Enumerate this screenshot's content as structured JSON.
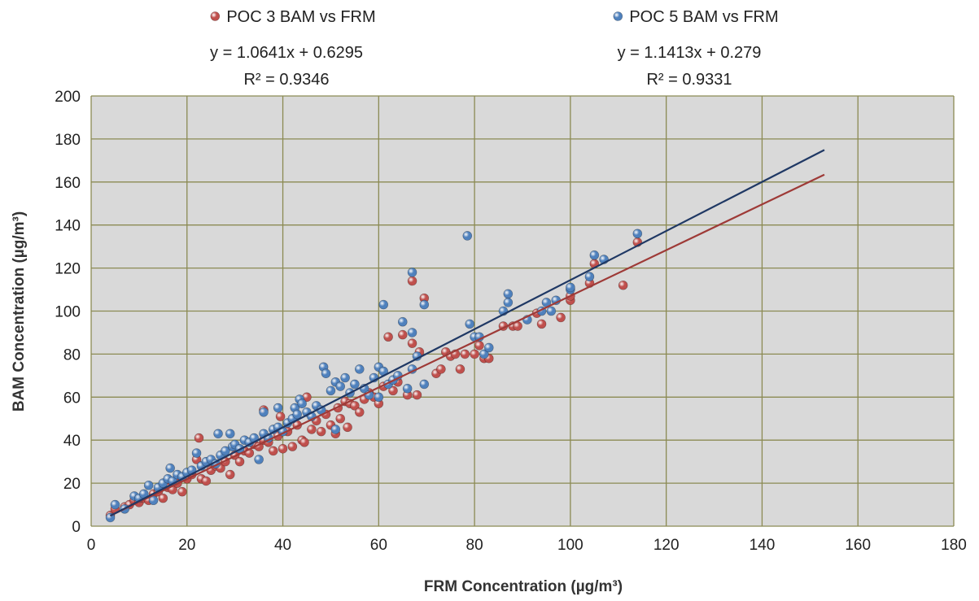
{
  "chart_data": {
    "type": "scatter",
    "xlabel": "FRM Concentration (µg/m³)",
    "ylabel": "BAM Concentration (µg/m³)",
    "xlim": [
      0,
      180
    ],
    "ylim": [
      0,
      200
    ],
    "x_ticks": [
      0,
      20,
      40,
      60,
      80,
      100,
      120,
      140,
      160,
      180
    ],
    "y_ticks": [
      0,
      20,
      40,
      60,
      80,
      100,
      120,
      140,
      160,
      180,
      200
    ],
    "grid": true,
    "legend_position": "top",
    "plot_background": "#d9d9d9",
    "grid_color": "#8b8a53",
    "series": [
      {
        "name": "POC 3 BAM vs FRM",
        "color": "#c0504d",
        "marker": "circle",
        "equation": "y = 1.0641x + 0.6295",
        "r_squared": "R² = 0.9346",
        "trendline": {
          "slope": 1.0641,
          "intercept": 0.6295,
          "x_range": [
            4,
            153
          ],
          "color": "#9e3a37"
        },
        "points": [
          [
            4,
            5
          ],
          [
            5,
            8
          ],
          [
            7,
            9
          ],
          [
            8,
            10
          ],
          [
            9,
            12
          ],
          [
            10,
            11
          ],
          [
            11,
            13
          ],
          [
            12,
            12
          ],
          [
            13,
            15
          ],
          [
            14,
            16
          ],
          [
            15,
            13
          ],
          [
            16,
            18
          ],
          [
            17,
            17
          ],
          [
            18,
            20
          ],
          [
            19,
            16
          ],
          [
            20,
            22
          ],
          [
            21,
            24
          ],
          [
            22,
            31
          ],
          [
            22.5,
            41
          ],
          [
            23,
            22
          ],
          [
            24,
            21
          ],
          [
            25,
            26
          ],
          [
            26,
            28
          ],
          [
            27,
            27
          ],
          [
            28,
            30
          ],
          [
            29,
            24
          ],
          [
            30,
            33
          ],
          [
            31,
            30
          ],
          [
            32,
            35
          ],
          [
            33,
            34
          ],
          [
            34,
            38
          ],
          [
            35,
            37
          ],
          [
            36,
            54
          ],
          [
            36,
            40
          ],
          [
            37,
            39
          ],
          [
            38,
            35
          ],
          [
            39,
            42
          ],
          [
            39.5,
            51
          ],
          [
            40,
            36
          ],
          [
            41,
            44
          ],
          [
            42,
            37
          ],
          [
            43,
            47
          ],
          [
            44,
            40
          ],
          [
            44.5,
            39
          ],
          [
            45,
            60
          ],
          [
            46,
            45
          ],
          [
            47,
            49
          ],
          [
            48,
            44
          ],
          [
            49,
            52
          ],
          [
            50,
            47
          ],
          [
            51,
            43
          ],
          [
            51.5,
            55
          ],
          [
            52,
            50
          ],
          [
            53,
            58
          ],
          [
            53.5,
            46
          ],
          [
            54,
            57
          ],
          [
            55,
            56
          ],
          [
            56,
            53
          ],
          [
            57,
            59
          ],
          [
            58,
            62
          ],
          [
            59,
            60
          ],
          [
            60,
            57
          ],
          [
            61,
            65
          ],
          [
            62,
            88
          ],
          [
            63,
            63
          ],
          [
            64,
            67
          ],
          [
            65,
            89
          ],
          [
            66,
            61
          ],
          [
            67,
            114
          ],
          [
            67,
            85
          ],
          [
            68,
            61
          ],
          [
            68.5,
            81
          ],
          [
            69.5,
            106
          ],
          [
            72,
            71
          ],
          [
            73,
            73
          ],
          [
            74,
            81
          ],
          [
            75,
            79
          ],
          [
            76,
            80
          ],
          [
            77,
            73
          ],
          [
            78,
            80
          ],
          [
            80,
            80
          ],
          [
            81,
            84
          ],
          [
            82,
            78
          ],
          [
            83,
            78
          ],
          [
            86,
            93
          ],
          [
            88,
            93
          ],
          [
            89,
            93
          ],
          [
            93,
            99
          ],
          [
            94,
            94
          ],
          [
            98,
            97
          ],
          [
            100,
            105
          ],
          [
            100,
            107
          ],
          [
            104,
            113
          ],
          [
            105,
            122
          ],
          [
            111,
            112
          ],
          [
            114,
            132
          ]
        ]
      },
      {
        "name": "POC 5 BAM vs FRM",
        "color": "#4f81bd",
        "marker": "circle",
        "equation": "y = 1.1413x + 0.279",
        "r_squared": "R² = 0.9331",
        "trendline": {
          "slope": 1.1413,
          "intercept": 0.279,
          "x_range": [
            4,
            153
          ],
          "color": "#1f3864"
        },
        "points": [
          [
            4,
            4
          ],
          [
            5,
            10
          ],
          [
            7,
            8
          ],
          [
            9,
            14
          ],
          [
            10,
            13
          ],
          [
            11,
            15
          ],
          [
            12,
            19
          ],
          [
            13,
            12
          ],
          [
            14,
            18
          ],
          [
            15,
            20
          ],
          [
            16,
            22
          ],
          [
            16.5,
            27
          ],
          [
            17,
            21
          ],
          [
            18,
            24
          ],
          [
            19,
            23
          ],
          [
            20,
            25
          ],
          [
            21,
            26
          ],
          [
            22,
            34
          ],
          [
            23,
            28
          ],
          [
            24,
            30
          ],
          [
            25,
            31
          ],
          [
            26,
            29
          ],
          [
            26.5,
            43
          ],
          [
            27,
            33
          ],
          [
            28,
            35
          ],
          [
            29,
            43
          ],
          [
            29.5,
            37
          ],
          [
            30,
            38
          ],
          [
            31,
            36
          ],
          [
            32,
            40
          ],
          [
            33,
            39
          ],
          [
            34,
            41
          ],
          [
            35,
            31
          ],
          [
            36,
            43
          ],
          [
            36,
            53
          ],
          [
            37,
            41
          ],
          [
            38,
            45
          ],
          [
            39,
            46
          ],
          [
            39,
            55
          ],
          [
            40,
            44
          ],
          [
            41,
            48
          ],
          [
            42,
            50
          ],
          [
            42.5,
            55
          ],
          [
            43,
            52
          ],
          [
            43.5,
            59
          ],
          [
            44,
            57
          ],
          [
            45,
            53
          ],
          [
            46,
            51
          ],
          [
            47,
            56
          ],
          [
            48,
            54
          ],
          [
            48.5,
            74
          ],
          [
            49,
            71
          ],
          [
            50,
            63
          ],
          [
            51,
            67
          ],
          [
            51,
            45
          ],
          [
            52,
            65
          ],
          [
            53,
            69
          ],
          [
            54,
            62
          ],
          [
            55,
            66
          ],
          [
            56,
            73
          ],
          [
            57,
            64
          ],
          [
            58,
            61
          ],
          [
            59,
            69
          ],
          [
            60,
            74
          ],
          [
            60,
            60
          ],
          [
            61,
            72
          ],
          [
            61,
            103
          ],
          [
            62,
            66
          ],
          [
            63,
            68
          ],
          [
            64,
            70
          ],
          [
            65,
            95
          ],
          [
            66,
            64
          ],
          [
            67,
            118
          ],
          [
            67,
            90
          ],
          [
            67,
            73
          ],
          [
            68,
            79
          ],
          [
            69.5,
            103
          ],
          [
            69.5,
            66
          ],
          [
            78.5,
            135
          ],
          [
            79,
            94
          ],
          [
            80,
            88
          ],
          [
            81,
            88
          ],
          [
            82,
            80
          ],
          [
            83,
            83
          ],
          [
            86,
            100
          ],
          [
            87,
            108
          ],
          [
            87,
            104
          ],
          [
            91,
            96
          ],
          [
            94,
            100
          ],
          [
            95,
            104
          ],
          [
            96,
            100
          ],
          [
            97,
            105
          ],
          [
            100,
            110
          ],
          [
            100,
            111
          ],
          [
            104,
            116
          ],
          [
            105,
            126
          ],
          [
            107,
            124
          ],
          [
            114,
            136
          ]
        ]
      }
    ]
  }
}
